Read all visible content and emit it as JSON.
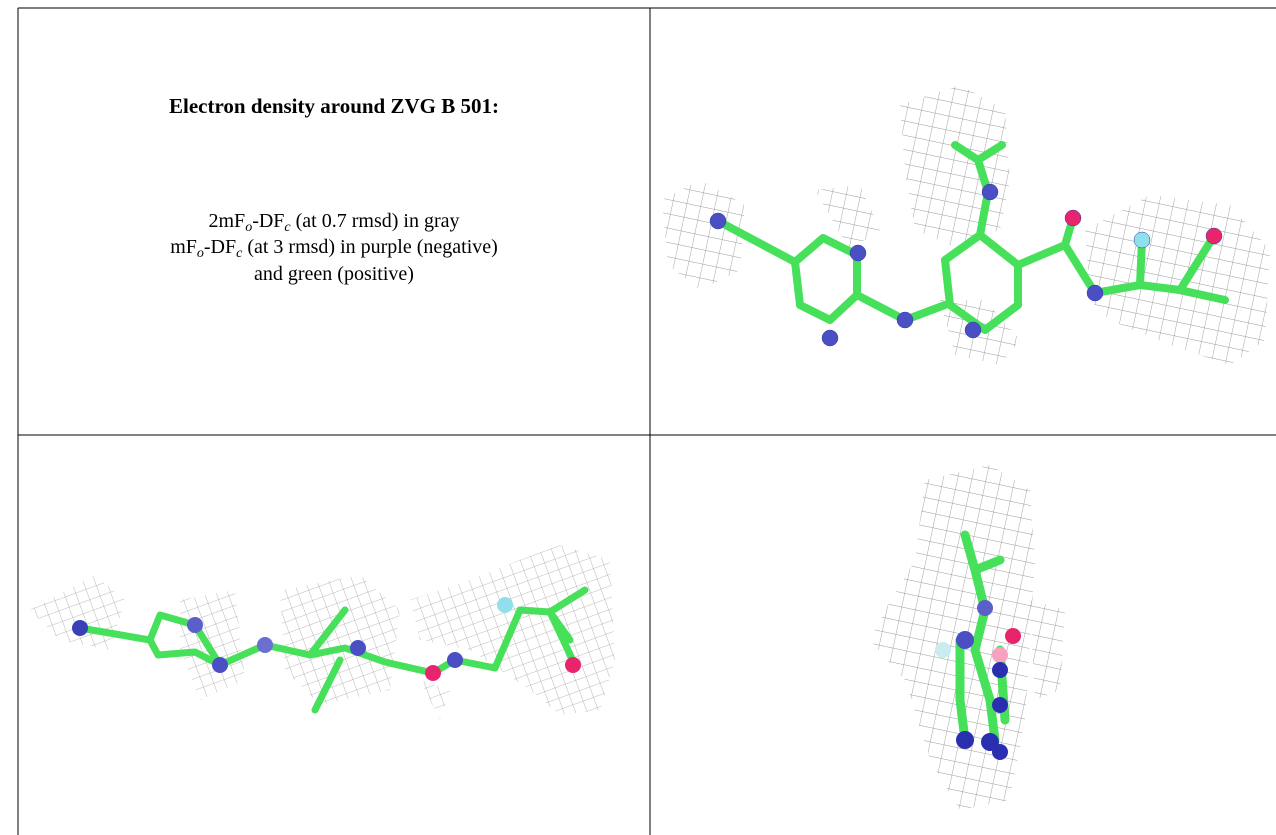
{
  "caption": {
    "title": "Electron density around ZVG B 501:",
    "lines": [
      [
        "2mF",
        "o",
        "-DF",
        "c",
        " (at 0.7 rmsd) in gray"
      ],
      [
        "mF",
        "o",
        "-DF",
        "c",
        " (at 3 rmsd) in purple (negative)"
      ],
      [
        "and green (positive)"
      ]
    ]
  }
}
